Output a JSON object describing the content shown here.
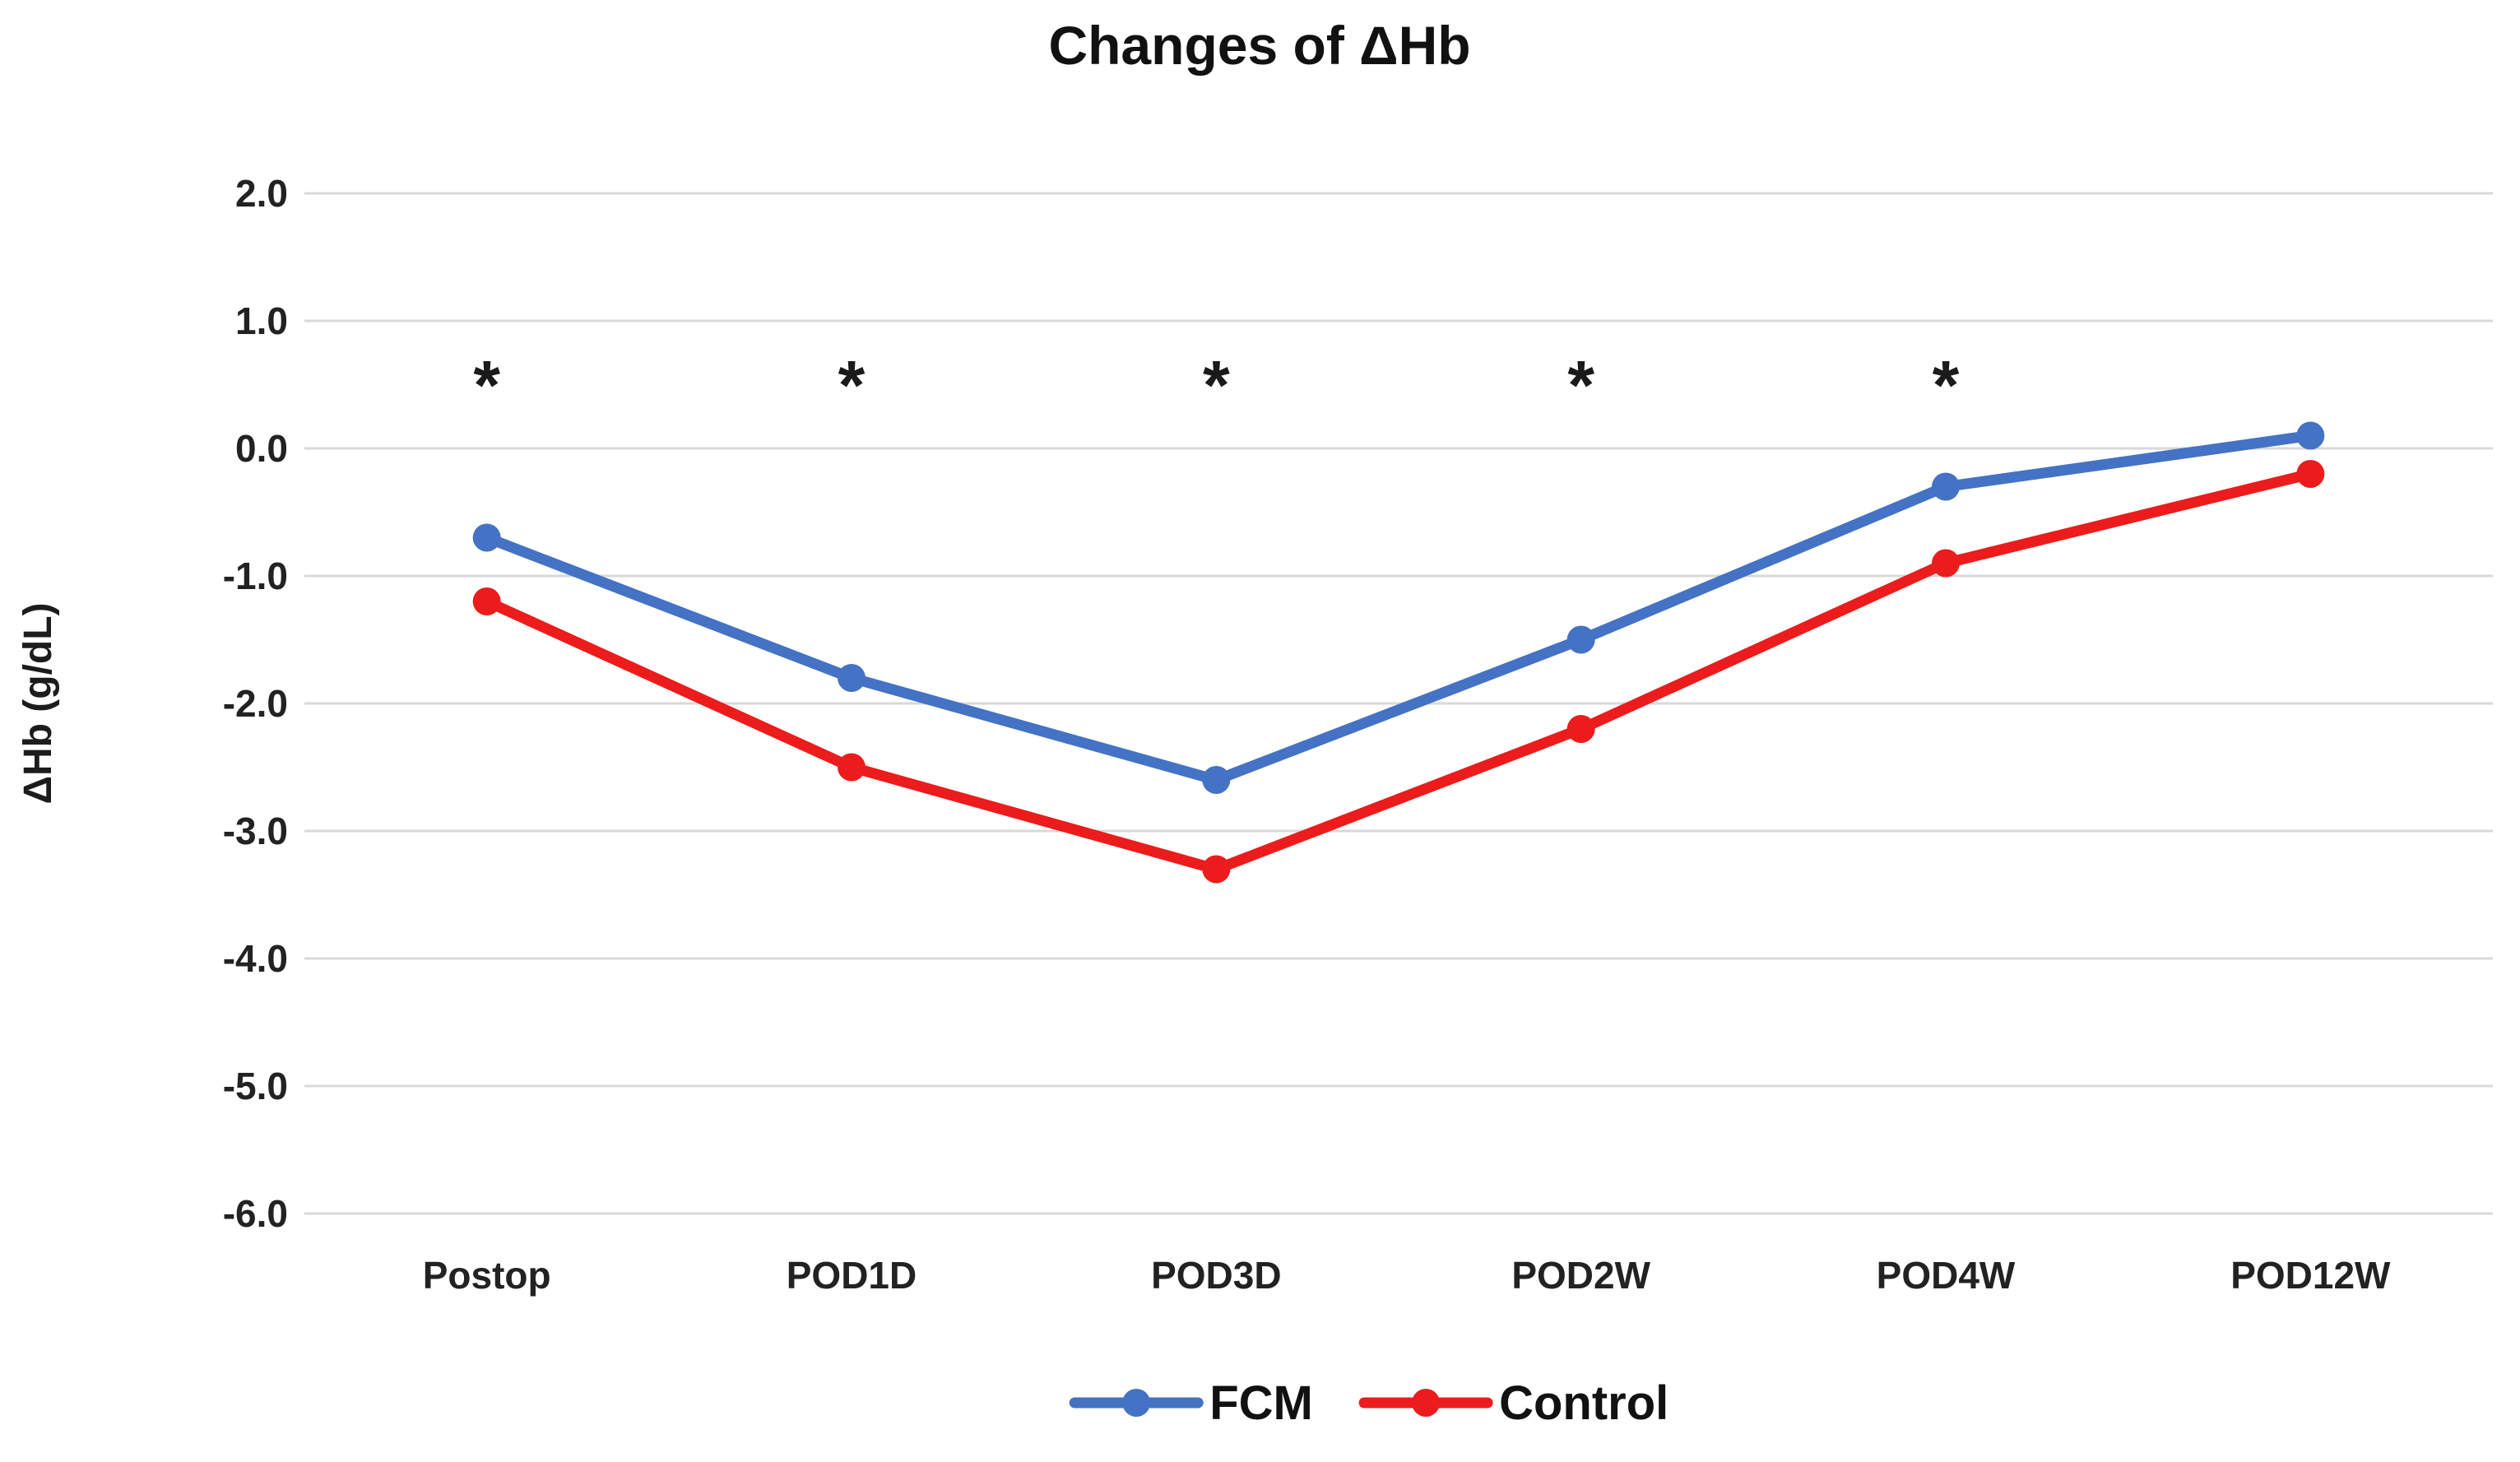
{
  "chart_data": {
    "type": "line",
    "title": "Changes of ΔHb",
    "xlabel": "",
    "ylabel": "ΔHb (g/dL)",
    "categories": [
      "Postop",
      "POD1D",
      "POD3D",
      "POD2W",
      "POD4W",
      "POD12W"
    ],
    "series": [
      {
        "name": "FCM",
        "color": "#4472C4",
        "values": [
          -0.7,
          -1.8,
          -2.6,
          -1.5,
          -0.3,
          0.1
        ]
      },
      {
        "name": "Control",
        "color": "#EC1C1C",
        "values": [
          -1.2,
          -2.5,
          -3.3,
          -2.2,
          -0.9,
          -0.2
        ]
      }
    ],
    "y_axis": {
      "min": -6.0,
      "max": 2.0,
      "step": 1.0,
      "tick_labels": [
        "2.0",
        "1.0",
        "0.0",
        "-1.0",
        "-2.0",
        "-3.0",
        "-4.0",
        "-5.0",
        "-6.0"
      ]
    },
    "annotations": [
      {
        "symbol": "*",
        "category": "Postop",
        "y": 0.6
      },
      {
        "symbol": "*",
        "category": "POD1D",
        "y": 0.6
      },
      {
        "symbol": "*",
        "category": "POD3D",
        "y": 0.6
      },
      {
        "symbol": "*",
        "category": "POD2W",
        "y": 0.6
      },
      {
        "symbol": "*",
        "category": "POD4W",
        "y": 0.6
      }
    ],
    "grid": true,
    "legend_position": "bottom"
  }
}
